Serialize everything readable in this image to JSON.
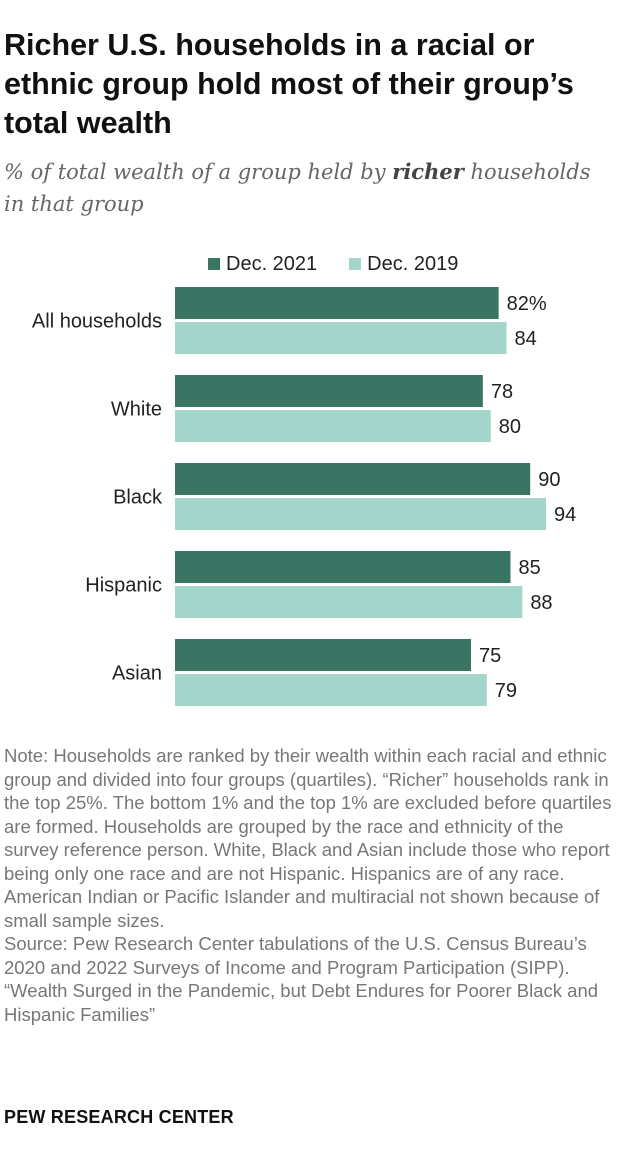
{
  "title": "Richer U.S. households in a racial or ethnic group hold most of their group’s total wealth",
  "subtitle": {
    "before": "% of total wealth of a group held by ",
    "emphasis": "richer",
    "after": " households in that group"
  },
  "colors": {
    "dec2021": "#3a7463",
    "dec2019": "#a4d5ca"
  },
  "chart_data": {
    "type": "bar",
    "orientation": "horizontal",
    "categories": [
      "All households",
      "White",
      "Black",
      "Hispanic",
      "Asian"
    ],
    "series": [
      {
        "name": "Dec. 2021",
        "values": [
          82,
          78,
          90,
          85,
          75
        ]
      },
      {
        "name": "Dec. 2019",
        "values": [
          84,
          80,
          94,
          88,
          79
        ]
      }
    ],
    "value_labels": [
      [
        "82%",
        "78",
        "90",
        "85",
        "75"
      ],
      [
        "84",
        "80",
        "94",
        "88",
        "79"
      ]
    ],
    "xlim": [
      0,
      94
    ],
    "legend_position": "top",
    "grid": false
  },
  "note_lines": [
    "Note: Households are ranked by their wealth within each racial and ethnic group and divided into four groups (quartiles). “Richer” households rank in the top 25%. The bottom 1% and the top 1% are excluded before quartiles are formed. Households are grouped by the race and ethnicity of the survey reference person. White, Black and Asian include those who report being only one race and are not Hispanic. Hispanics are of any race. American Indian or Pacific Islander and multiracial not shown because of small sample sizes.",
    "Source: Pew Research Center tabulations of the U.S. Census Bureau’s 2020 and 2022 Surveys of Income and Program Participation (SIPP).",
    "“Wealth Surged in the Pandemic, but Debt Endures for Poorer Black and Hispanic Families”"
  ],
  "brand": "PEW RESEARCH CENTER"
}
